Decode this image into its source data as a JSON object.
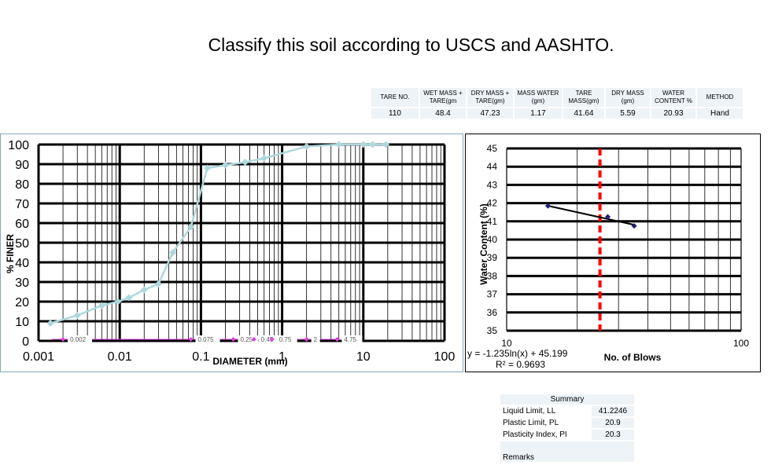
{
  "question": "Classify this soil according to USCS and AASHTO.",
  "plastic_limit_table": {
    "headers": [
      "TARE NO.",
      "WET MASS + TARE(gm",
      "DRY MASS + TARE(gm)",
      "MASS WATER (gm)",
      "TARE MASS(gm)",
      "DRY MASS (gm)",
      "WATER CONTENT %",
      "METHOD"
    ],
    "row": [
      "110",
      "48.4",
      "47.23",
      "1.17",
      "41.64",
      "5.59",
      "20.93",
      "Hand"
    ]
  },
  "chart_data": [
    {
      "type": "line",
      "xlabel": "DIAMETER (mm)",
      "ylabel": "% FINER",
      "x_scale": "log",
      "xlim": [
        0.001,
        100
      ],
      "ylim": [
        0,
        100
      ],
      "x_ticks": [
        "0.001",
        "0.01",
        "0.1",
        "1",
        "10",
        "100"
      ],
      "y_ticks": [
        "0",
        "10",
        "20",
        "30",
        "40",
        "50",
        "60",
        "70",
        "80",
        "90",
        "100"
      ],
      "grid": true,
      "series": [
        {
          "color": "#aed8dc",
          "x": [
            0.0014,
            0.003,
            0.006,
            0.0095,
            0.013,
            0.02,
            0.03,
            0.045,
            0.075,
            0.12,
            0.2,
            0.35,
            0.6,
            2,
            5,
            10,
            13,
            19
          ],
          "y": [
            9,
            13,
            18,
            20,
            22,
            26,
            29,
            45,
            58,
            88,
            89.5,
            91,
            93,
            99,
            100,
            100,
            100,
            100
          ]
        },
        {
          "color": "#e040e0",
          "markers_at": [
            0.002,
            0.075,
            0.25,
            0.45,
            0.75,
            2,
            4.75
          ],
          "labels": [
            "0.002",
            "0.075",
            "0.25",
            "0.45",
            "0.75",
            "2",
            "4.75"
          ]
        }
      ]
    },
    {
      "type": "scatter",
      "xlabel": "No. of Blows",
      "ylabel": "Water Content (%)",
      "x_scale": "log",
      "xlim": [
        10,
        100
      ],
      "ylim": [
        35,
        45
      ],
      "x_ticks": [
        "10",
        "100"
      ],
      "y_ticks": [
        "35",
        "36",
        "37",
        "38",
        "39",
        "40",
        "41",
        "42",
        "43",
        "44",
        "45"
      ],
      "grid": true,
      "series": [
        {
          "color": "#1f1f6e",
          "x": [
            15,
            27,
            35
          ],
          "y": [
            41.85,
            41.25,
            40.75
          ]
        }
      ],
      "trendline": {
        "color": "#000000",
        "equation": "y = -1.235ln(x) + 45.199",
        "r2": "R² = 0.9693",
        "a": -1.235,
        "b": 45.199
      },
      "reference_line": {
        "x": 25,
        "color": "#ff0000",
        "style": "dashed"
      }
    }
  ],
  "summary": {
    "title": "Summary",
    "rows": [
      {
        "label": "Liquid Limit, LL",
        "value": "41.2246"
      },
      {
        "label": "Plastic Limit, PL",
        "value": "20.9"
      },
      {
        "label": "Plasticity Index, PI",
        "value": "20.3"
      }
    ],
    "remarks": "Remarks"
  }
}
